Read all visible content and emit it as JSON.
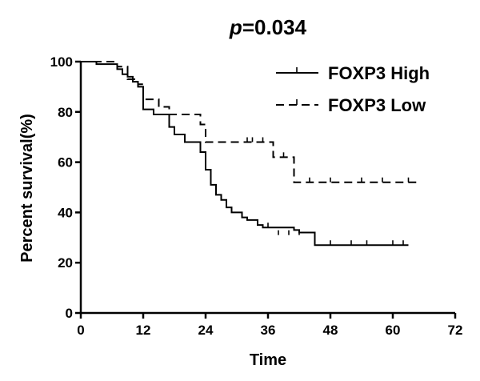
{
  "chart_data": {
    "type": "line",
    "title_prefix": "p",
    "title_value": "=0.034",
    "xlabel": "Time",
    "ylabel": "Percent survival(%)",
    "xlim": [
      0,
      72
    ],
    "ylim": [
      0,
      100
    ],
    "xticks": [
      0,
      12,
      24,
      36,
      48,
      60,
      72
    ],
    "yticks": [
      0,
      20,
      40,
      60,
      80,
      100
    ],
    "legend_position": "top-right",
    "series": [
      {
        "name": "FOXP3 High",
        "style": "solid",
        "steps": [
          [
            0,
            100
          ],
          [
            3,
            99
          ],
          [
            7,
            97
          ],
          [
            8,
            95
          ],
          [
            9,
            94
          ],
          [
            10,
            92
          ],
          [
            11,
            90
          ],
          [
            12,
            81
          ],
          [
            14,
            79
          ],
          [
            17,
            74
          ],
          [
            18,
            71
          ],
          [
            20,
            68
          ],
          [
            23,
            64
          ],
          [
            24,
            57
          ],
          [
            25,
            51
          ],
          [
            26,
            47
          ],
          [
            27,
            45
          ],
          [
            28,
            42
          ],
          [
            29,
            40
          ],
          [
            31,
            38
          ],
          [
            32,
            37
          ],
          [
            34,
            35
          ],
          [
            35,
            34
          ],
          [
            41,
            33
          ],
          [
            42,
            32
          ],
          [
            45,
            27
          ],
          [
            63,
            27
          ]
        ],
        "censored": [
          [
            27,
            45
          ],
          [
            31,
            38
          ],
          [
            36,
            34
          ],
          [
            38,
            31
          ],
          [
            40,
            31
          ],
          [
            42,
            31
          ],
          [
            48,
            27
          ],
          [
            52,
            27
          ],
          [
            55,
            27
          ],
          [
            60,
            27
          ],
          [
            62,
            27
          ]
        ]
      },
      {
        "name": "FOXP3 Low",
        "style": "dashed",
        "steps": [
          [
            0,
            100
          ],
          [
            7,
            98
          ],
          [
            9,
            93
          ],
          [
            11,
            91
          ],
          [
            12,
            85
          ],
          [
            15,
            82
          ],
          [
            17,
            79
          ],
          [
            23,
            75
          ],
          [
            24,
            68
          ],
          [
            35,
            68
          ],
          [
            37,
            62
          ],
          [
            40,
            62
          ],
          [
            41,
            52
          ],
          [
            65,
            52
          ]
        ],
        "censored": [
          [
            32,
            68
          ],
          [
            33,
            68
          ],
          [
            35,
            68
          ],
          [
            39,
            62
          ],
          [
            44,
            52
          ],
          [
            48,
            52
          ],
          [
            54,
            52
          ],
          [
            58,
            52
          ],
          [
            63,
            52
          ]
        ]
      }
    ]
  }
}
